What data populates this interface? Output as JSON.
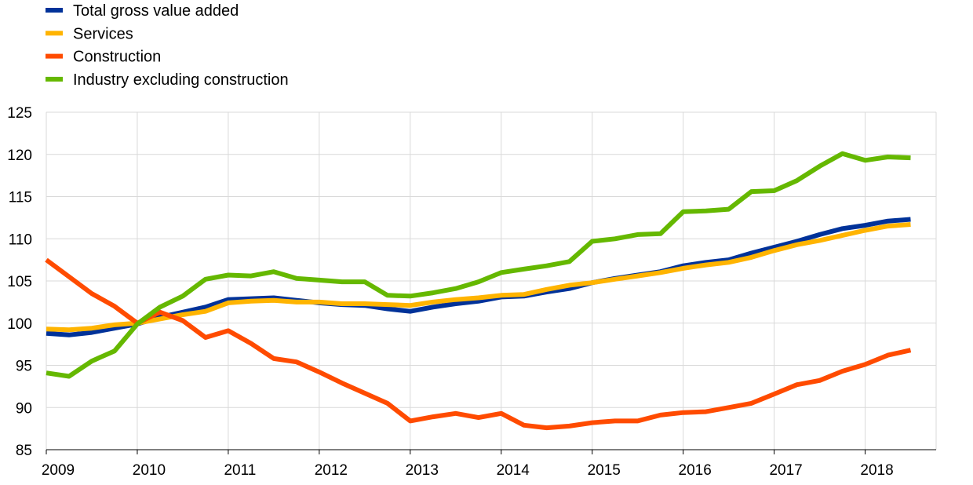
{
  "chart_data": {
    "type": "line",
    "title": "",
    "xlabel": "",
    "ylabel": "",
    "ylim": [
      85,
      125
    ],
    "xlim": [
      2009,
      2018.78
    ],
    "yticks": [
      85,
      90,
      95,
      100,
      105,
      110,
      115,
      120,
      125
    ],
    "xticks": [
      "2009",
      "2010",
      "2011",
      "2012",
      "2013",
      "2014",
      "2015",
      "2016",
      "2017",
      "2018"
    ],
    "grid": true,
    "legend_position": "top-left",
    "x": [
      2009.0,
      2009.25,
      2009.5,
      2009.75,
      2010.0,
      2010.25,
      2010.5,
      2010.75,
      2011.0,
      2011.25,
      2011.5,
      2011.75,
      2012.0,
      2012.25,
      2012.5,
      2012.75,
      2013.0,
      2013.25,
      2013.5,
      2013.75,
      2014.0,
      2014.25,
      2014.5,
      2014.75,
      2015.0,
      2015.25,
      2015.5,
      2015.75,
      2016.0,
      2016.25,
      2016.5,
      2016.75,
      2017.0,
      2017.25,
      2017.5,
      2017.75,
      2018.0,
      2018.25,
      2018.5
    ],
    "series": [
      {
        "name": "Total gross value added",
        "color": "#003299",
        "values": [
          98.8,
          98.6,
          98.9,
          99.4,
          99.9,
          100.7,
          101.3,
          101.9,
          102.8,
          102.9,
          103.0,
          102.7,
          102.4,
          102.2,
          102.1,
          101.7,
          101.4,
          101.9,
          102.3,
          102.6,
          103.1,
          103.2,
          103.7,
          104.1,
          104.8,
          105.3,
          105.7,
          106.1,
          106.8,
          107.2,
          107.5,
          108.3,
          109.0,
          109.7,
          110.5,
          111.2,
          111.6,
          112.1,
          112.3
        ]
      },
      {
        "name": "Services",
        "color": "#FFB400",
        "values": [
          99.3,
          99.2,
          99.4,
          99.8,
          100.0,
          100.5,
          101.0,
          101.4,
          102.4,
          102.6,
          102.7,
          102.5,
          102.5,
          102.3,
          102.3,
          102.2,
          102.1,
          102.5,
          102.8,
          103.0,
          103.3,
          103.4,
          104.0,
          104.5,
          104.8,
          105.2,
          105.6,
          106.0,
          106.5,
          106.9,
          107.2,
          107.8,
          108.6,
          109.3,
          109.8,
          110.4,
          111.0,
          111.5,
          111.7
        ]
      },
      {
        "name": "Construction",
        "color": "#FF4B00",
        "values": [
          107.5,
          105.5,
          103.5,
          102.0,
          100.0,
          101.3,
          100.3,
          98.3,
          99.1,
          97.6,
          95.8,
          95.4,
          94.2,
          92.9,
          91.7,
          90.5,
          88.4,
          88.9,
          89.3,
          88.8,
          89.3,
          87.9,
          87.6,
          87.8,
          88.2,
          88.4,
          88.4,
          89.1,
          89.4,
          89.5,
          90.0,
          90.5,
          91.6,
          92.7,
          93.2,
          94.3,
          95.1,
          96.2,
          96.8
        ]
      },
      {
        "name": "Industry excluding construction",
        "color": "#65B800",
        "values": [
          94.1,
          93.7,
          95.5,
          96.7,
          99.9,
          101.9,
          103.2,
          105.2,
          105.7,
          105.6,
          106.1,
          105.3,
          105.1,
          104.9,
          104.9,
          103.3,
          103.2,
          103.6,
          104.1,
          104.9,
          106.0,
          106.4,
          106.8,
          107.3,
          109.7,
          110.0,
          110.5,
          110.6,
          113.2,
          113.3,
          113.5,
          115.6,
          115.7,
          116.9,
          118.6,
          120.1,
          119.3,
          119.7,
          119.6
        ]
      }
    ]
  }
}
